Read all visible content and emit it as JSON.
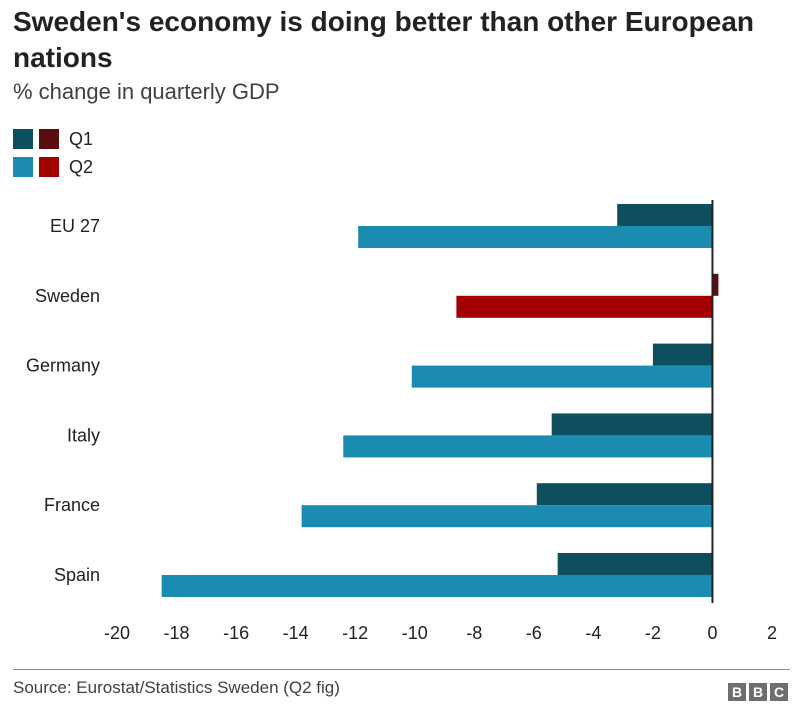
{
  "chart_data": {
    "type": "bar",
    "orientation": "horizontal",
    "title": "Sweden's economy is doing better than other European nations",
    "subtitle": "% change in quarterly GDP",
    "categories": [
      "EU 27",
      "Sweden",
      "Germany",
      "Italy",
      "France",
      "Spain"
    ],
    "series": [
      {
        "name": "Q1",
        "values": [
          -3.2,
          0.2,
          -2.0,
          -5.4,
          -5.9,
          -5.2
        ]
      },
      {
        "name": "Q2",
        "values": [
          -11.9,
          -8.6,
          -10.1,
          -12.4,
          -13.8,
          -18.5
        ]
      }
    ],
    "xlim": [
      -20,
      2
    ],
    "xticks": [
      -20,
      -18,
      -16,
      -14,
      -12,
      -10,
      -8,
      -6,
      -4,
      -2,
      0,
      2
    ],
    "highlight_category": "Sweden",
    "legend_position": "top-left"
  },
  "colors": {
    "q1": "#0d4f5f",
    "q2": "#1c8bb0",
    "q1_highlight": "#5a0d0d",
    "q2_highlight": "#a30000"
  },
  "footer": {
    "source": "Source: Eurostat/Statistics Sweden (Q2 fig)",
    "logo": [
      "B",
      "B",
      "C"
    ]
  }
}
